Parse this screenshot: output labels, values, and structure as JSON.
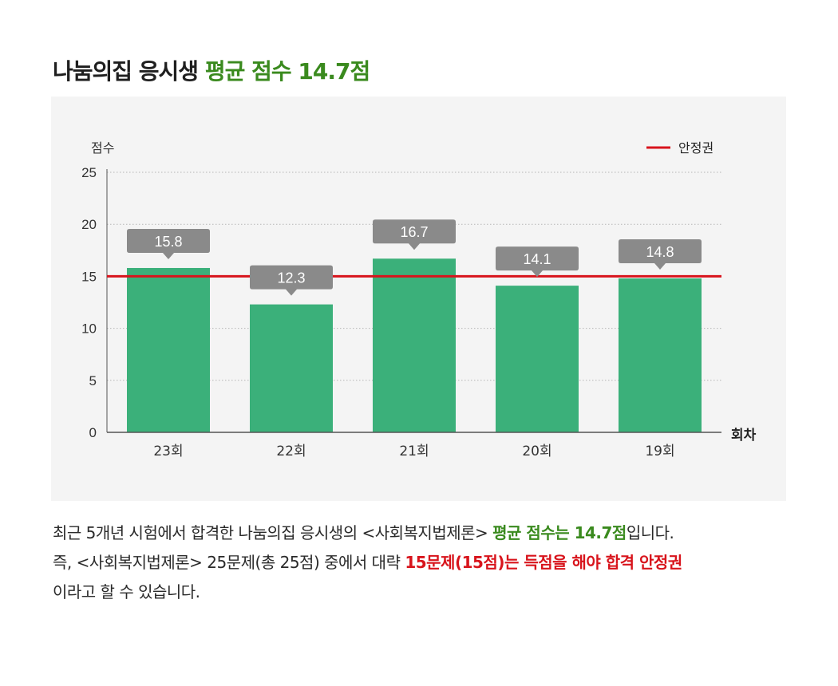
{
  "title": {
    "prefix": "나눔의집 응시생 ",
    "highlight": "평균 점수 14.7점"
  },
  "colors": {
    "bar": "#3bb07a",
    "threshold_line": "#d8141c",
    "label_box": "#8a8a8a",
    "highlight_green": "#3a8a1e",
    "highlight_red": "#d8141c",
    "panel_bg": "#f4f4f4"
  },
  "chart_data": {
    "type": "bar",
    "categories": [
      "23회",
      "22회",
      "21회",
      "20회",
      "19회"
    ],
    "values": [
      15.8,
      12.3,
      16.7,
      14.1,
      14.8
    ],
    "value_labels": [
      "15.8",
      "12.3",
      "16.7",
      "14.1",
      "14.8"
    ],
    "title": "",
    "xlabel": "회차",
    "ylabel": "점수",
    "ylim": [
      0,
      25
    ],
    "yticks": [
      0,
      5,
      10,
      15,
      20,
      25
    ],
    "ytick_labels": [
      "0",
      "5",
      "10",
      "15",
      "20",
      "25"
    ],
    "grid": true,
    "threshold": {
      "name": "안정권",
      "value": 15
    },
    "legend": {
      "position": "top-right",
      "entries": [
        "안정권"
      ]
    }
  },
  "description": {
    "line1_text": "최근 5개년 시험에서 합격한 나눔의집 응시생의 <사회복지법제론> ",
    "line1_green": "평균 점수는 14.7점",
    "line1_end": "입니다.",
    "line2_text": "즉, <사회복지법제론> 25문제(총 25점) 중에서 대략 ",
    "line2_red": "15문제(15점)는 득점을 해야 합격 안정권",
    "line3_text": "이라고 할 수 있습니다."
  }
}
